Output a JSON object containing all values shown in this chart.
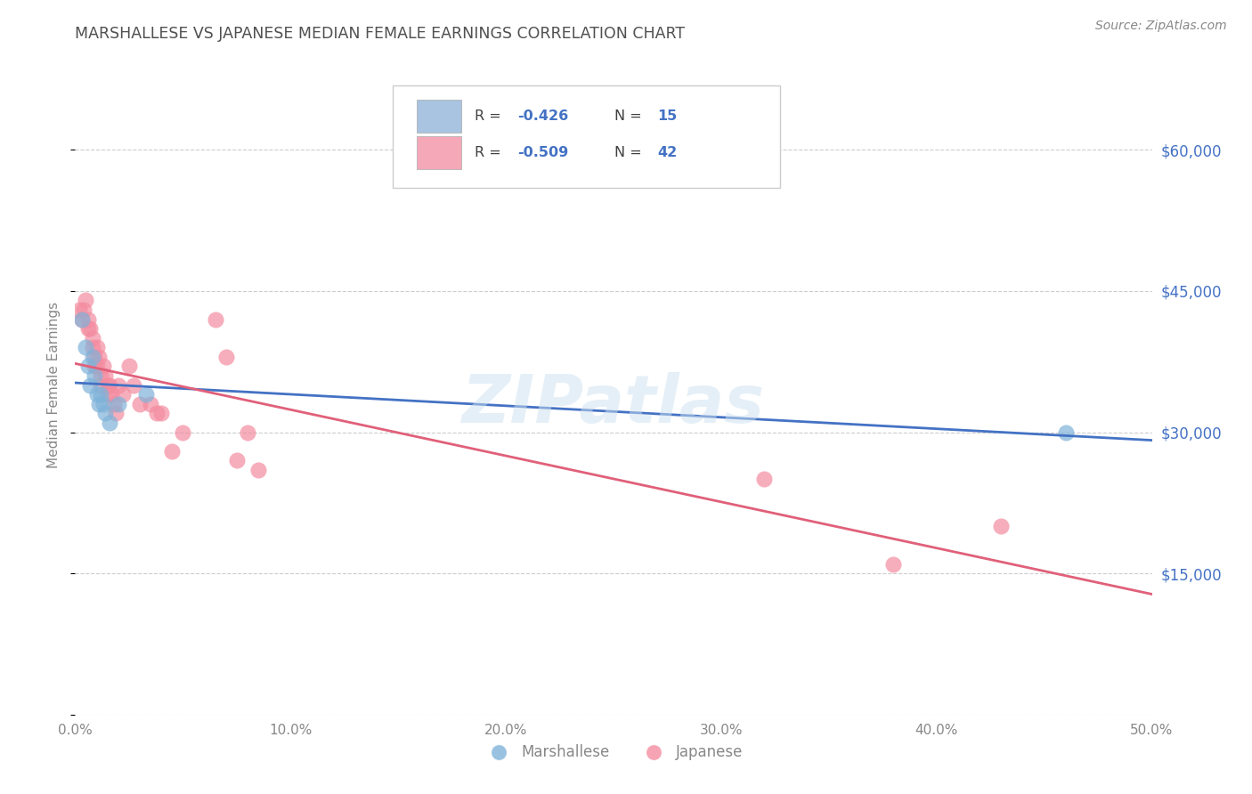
{
  "title": "MARSHALLESE VS JAPANESE MEDIAN FEMALE EARNINGS CORRELATION CHART",
  "source": "Source: ZipAtlas.com",
  "ylabel": "Median Female Earnings",
  "xlim": [
    0.0,
    0.5
  ],
  "ylim": [
    0,
    70000
  ],
  "yticks": [
    0,
    15000,
    30000,
    45000,
    60000
  ],
  "ytick_labels": [
    "",
    "$15,000",
    "$30,000",
    "$45,000",
    "$60,000"
  ],
  "xtick_labels": [
    "0.0%",
    "10.0%",
    "20.0%",
    "30.0%",
    "40.0%",
    "50.0%"
  ],
  "xticks": [
    0.0,
    0.1,
    0.2,
    0.3,
    0.4,
    0.5
  ],
  "watermark": "ZIPatlas",
  "legend_bottom": [
    "Marshallese",
    "Japanese"
  ],
  "marshallese_color": "#7fb3d9",
  "japanese_color": "#f48ca0",
  "marshallese_line_color": "#4472c4",
  "japanese_line_color": "#e0607a",
  "background_color": "#ffffff",
  "grid_color": "#cccccc",
  "title_color": "#505050",
  "tick_label_color_right": "#4472c4",
  "legend_patch_blue": "#a8c4e0",
  "legend_patch_pink": "#f4a8b8",
  "marshallese_x": [
    0.003,
    0.005,
    0.006,
    0.007,
    0.008,
    0.009,
    0.01,
    0.011,
    0.012,
    0.013,
    0.014,
    0.016,
    0.02,
    0.033,
    0.46
  ],
  "marshallese_y": [
    42000,
    39000,
    37000,
    35000,
    38000,
    36000,
    34000,
    33000,
    34000,
    33000,
    32000,
    31000,
    33000,
    34000,
    30000
  ],
  "japanese_x": [
    0.002,
    0.003,
    0.004,
    0.005,
    0.006,
    0.006,
    0.007,
    0.008,
    0.008,
    0.009,
    0.009,
    0.01,
    0.01,
    0.011,
    0.012,
    0.012,
    0.013,
    0.014,
    0.015,
    0.015,
    0.016,
    0.017,
    0.018,
    0.019,
    0.02,
    0.022,
    0.025,
    0.027,
    0.03,
    0.035,
    0.038,
    0.04,
    0.045,
    0.05,
    0.065,
    0.07,
    0.075,
    0.08,
    0.085,
    0.32,
    0.38,
    0.43
  ],
  "japanese_y": [
    43000,
    42000,
    43000,
    44000,
    42000,
    41000,
    41000,
    40000,
    39000,
    38000,
    37000,
    39000,
    37000,
    38000,
    36000,
    35000,
    37000,
    36000,
    35000,
    34000,
    35000,
    34000,
    33000,
    32000,
    35000,
    34000,
    37000,
    35000,
    33000,
    33000,
    32000,
    32000,
    28000,
    30000,
    42000,
    38000,
    27000,
    30000,
    26000,
    25000,
    16000,
    20000
  ]
}
